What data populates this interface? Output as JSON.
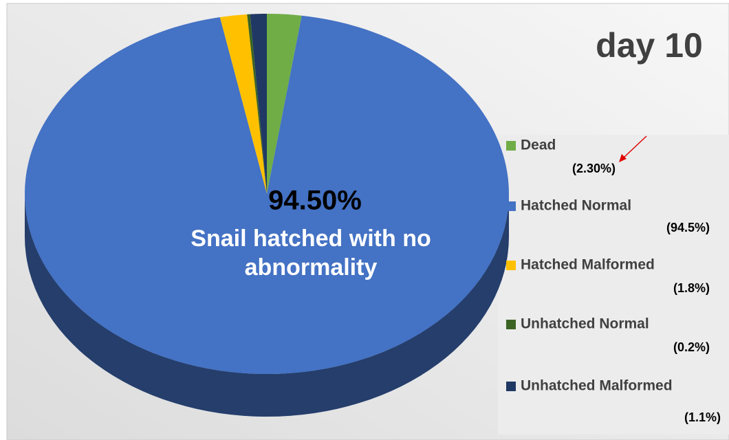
{
  "chart_data": {
    "type": "pie",
    "title": "day 10",
    "center_label": "94.50%",
    "annotation": "Snail hatched with no abnormality",
    "series": [
      {
        "name": "Pie",
        "categories": [
          "Dead",
          "Hatched Normal",
          "Hatched Malformed",
          "Unhatched Normal",
          "Unhatched Malformed"
        ],
        "values": [
          2.3,
          94.5,
          1.8,
          0.2,
          1.1
        ],
        "value_labels": [
          "(2.30%)",
          "(94.5%)",
          "(1.8%)",
          "(0.2%)",
          "(1.1%)"
        ],
        "colors": [
          "#70ad47",
          "#4472c4",
          "#ffc000",
          "#3b6424",
          "#203864"
        ]
      }
    ]
  }
}
